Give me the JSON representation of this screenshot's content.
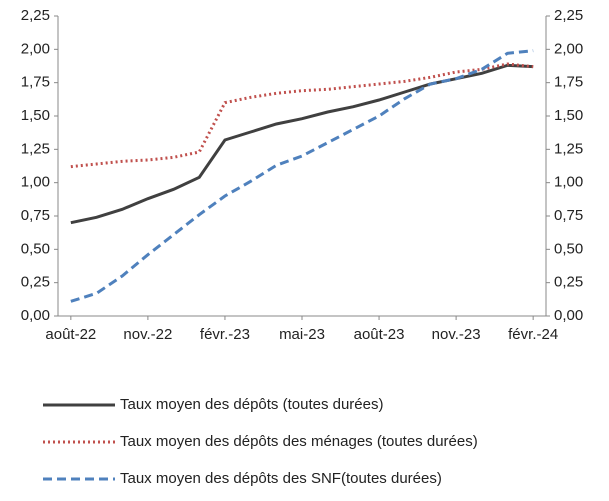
{
  "chart_data": {
    "type": "line",
    "categories": [
      "août-22",
      null,
      null,
      "nov.-22",
      null,
      null,
      "févr.-23",
      null,
      null,
      "mai-23",
      null,
      null,
      "août-23",
      null,
      null,
      "nov.-23",
      null,
      null,
      "févr.-24"
    ],
    "series": [
      {
        "name": "Taux moyen des dépôts (toutes durées)",
        "color": "#404040",
        "dash": "solid",
        "values": [
          0.7,
          0.74,
          0.8,
          0.88,
          0.95,
          1.04,
          1.32,
          1.38,
          1.44,
          1.48,
          1.53,
          1.57,
          1.62,
          1.68,
          1.74,
          1.78,
          1.82,
          1.88,
          1.87
        ]
      },
      {
        "name": "Taux moyen des dépôts des ménages (toutes durées)",
        "color": "#c0504d",
        "dash": "dotted",
        "values": [
          1.12,
          1.14,
          1.16,
          1.17,
          1.19,
          1.23,
          1.6,
          1.64,
          1.67,
          1.69,
          1.7,
          1.72,
          1.74,
          1.76,
          1.79,
          1.83,
          1.85,
          1.89,
          1.87
        ]
      },
      {
        "name": "Taux moyen des dépôts des SNF(toutes durées)",
        "color": "#4f81bd",
        "dash": "dashed",
        "values": [
          0.11,
          0.17,
          0.3,
          0.46,
          0.61,
          0.76,
          0.9,
          1.01,
          1.13,
          1.2,
          1.3,
          1.4,
          1.5,
          1.63,
          1.74,
          1.78,
          1.85,
          1.97,
          1.99
        ]
      }
    ],
    "ylim": [
      0,
      2.25
    ],
    "yticks": [
      {
        "value": 0,
        "label": "0,00"
      },
      {
        "value": 0.25,
        "label": "0,25"
      },
      {
        "value": 0.5,
        "label": "0,50"
      },
      {
        "value": 0.75,
        "label": "0,75"
      },
      {
        "value": 1,
        "label": "1,00"
      },
      {
        "value": 1.25,
        "label": "1,25"
      },
      {
        "value": 1.5,
        "label": "1,50"
      },
      {
        "value": 1.75,
        "label": "1,75"
      },
      {
        "value": 2,
        "label": "2,00"
      },
      {
        "value": 2.25,
        "label": "2,25"
      }
    ],
    "y2lim": [
      0,
      2.25
    ],
    "y2ticks": [
      {
        "value": 0,
        "label": "0,00"
      },
      {
        "value": 0.25,
        "label": "0,25"
      },
      {
        "value": 0.5,
        "label": "0,50"
      },
      {
        "value": 0.75,
        "label": "0,75"
      },
      {
        "value": 1,
        "label": "1,00"
      },
      {
        "value": 1.25,
        "label": "1,25"
      },
      {
        "value": 1.5,
        "label": "1,50"
      },
      {
        "value": 1.75,
        "label": "1,75"
      },
      {
        "value": 2,
        "label": "2,00"
      },
      {
        "value": 2.25,
        "label": "2,25"
      }
    ],
    "grid": false,
    "legend": "bottom"
  }
}
